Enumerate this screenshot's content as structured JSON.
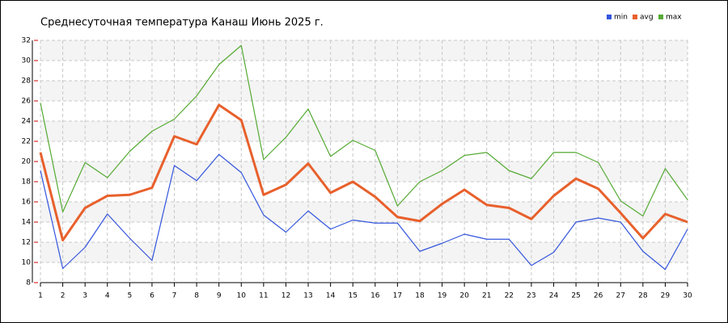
{
  "chart_data": {
    "type": "line",
    "title": "Среднесуточная температура Канаш  Июнь 2025 г.",
    "x": [
      1,
      2,
      3,
      4,
      5,
      6,
      7,
      8,
      9,
      10,
      11,
      12,
      13,
      14,
      15,
      16,
      17,
      18,
      19,
      20,
      21,
      22,
      23,
      24,
      25,
      26,
      27,
      28,
      29,
      30
    ],
    "xlim": [
      1,
      30
    ],
    "xticks": [
      1,
      2,
      3,
      4,
      5,
      6,
      7,
      8,
      9,
      10,
      11,
      12,
      13,
      14,
      15,
      16,
      17,
      18,
      19,
      20,
      21,
      22,
      23,
      24,
      25,
      26,
      27,
      28,
      29,
      30
    ],
    "ylim": [
      8,
      32
    ],
    "yticks": [
      8,
      10,
      12,
      14,
      16,
      18,
      20,
      22,
      24,
      26,
      28,
      30,
      32
    ],
    "grid": true,
    "legend": "top-right",
    "series": [
      {
        "name": "min",
        "color": "#3355dd",
        "values": [
          19.1,
          9.4,
          11.5,
          14.8,
          12.4,
          10.2,
          19.6,
          18.1,
          20.7,
          18.9,
          14.7,
          13.0,
          15.1,
          13.3,
          14.2,
          13.9,
          13.9,
          11.1,
          11.9,
          12.8,
          12.3,
          12.3,
          9.7,
          11.0,
          14.0,
          14.4,
          14.0,
          11.1,
          9.3,
          13.3
        ]
      },
      {
        "name": "avg",
        "color": "#e8602c",
        "values": [
          20.9,
          12.2,
          15.4,
          16.6,
          16.7,
          17.4,
          22.5,
          21.7,
          25.6,
          24.1,
          16.7,
          17.7,
          19.8,
          16.9,
          18.0,
          16.5,
          14.5,
          14.1,
          15.8,
          17.2,
          15.7,
          15.4,
          14.3,
          16.6,
          18.3,
          17.3,
          14.9,
          12.4,
          14.8,
          14.0
        ]
      },
      {
        "name": "max",
        "color": "#55aa33",
        "values": [
          25.8,
          15.0,
          19.9,
          18.4,
          21.0,
          23.0,
          24.2,
          26.5,
          29.6,
          31.5,
          20.2,
          22.4,
          25.2,
          20.5,
          22.1,
          21.1,
          15.6,
          18.0,
          19.1,
          20.6,
          20.9,
          19.1,
          18.3,
          20.9,
          20.9,
          19.9,
          16.1,
          14.6,
          19.3,
          16.2
        ]
      }
    ]
  }
}
